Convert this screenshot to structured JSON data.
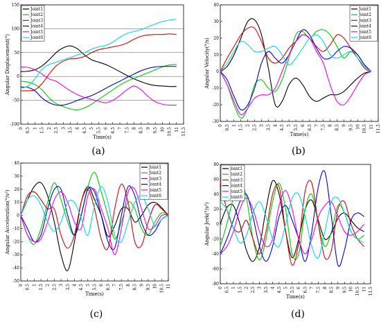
{
  "figure": {
    "panels": [
      {
        "label": "(a)",
        "ylabel": "Angular Displacement(°)",
        "xlabel": "Time(s)"
      },
      {
        "label": "(b)",
        "ylabel": "Angular Velocity(°/s)",
        "xlabel": "Time(s)"
      },
      {
        "label": "(c)",
        "ylabel": "Angular Acceleration(°/s²)",
        "xlabel": "Time(s)"
      },
      {
        "label": "(d)",
        "ylabel": "Angular Jerk(°/s³)",
        "xlabel": "Time(s)"
      }
    ]
  },
  "colors": {
    "Joint1": "#000000",
    "Joint2": "#00cc00",
    "Joint3": "#e00000",
    "Joint4": "#0000dd",
    "Joint5": "#ee00ee",
    "Joint6": "#00dddd"
  },
  "chart_data": [
    {
      "type": "line",
      "title": "",
      "xlabel": "Time(s)",
      "ylabel": "Angular Displacement(°)",
      "xlim": [
        0,
        11.5
      ],
      "ylim": [
        -100,
        150
      ],
      "xticks": [
        0,
        0.5,
        1,
        1.5,
        2,
        2.5,
        3,
        3.5,
        4,
        4.5,
        5,
        5.5,
        6,
        6.5,
        7,
        7.5,
        8,
        8.5,
        9,
        9.5,
        10,
        10.5,
        11,
        11.5
      ],
      "xtick_labels": [
        "0",
        "0.5",
        "1",
        "1.5",
        "2",
        "2.5",
        "3",
        "3.5",
        "4",
        "4.5",
        "5",
        "5.5",
        "6",
        "6.5",
        "7",
        "7.5",
        "8",
        "8.5",
        "9",
        "9.5",
        "10",
        "10.5",
        "11",
        "11.5"
      ],
      "yticks": [
        -100,
        -50,
        0,
        50,
        100,
        150
      ],
      "ytick_labels": [
        "-100",
        "-50",
        "0",
        "50",
        "100",
        "150"
      ],
      "grid": true,
      "legend": "top-left",
      "x": [
        0,
        0.5,
        1,
        1.5,
        2,
        2.5,
        3,
        3.5,
        4,
        4.5,
        5,
        5.5,
        6,
        6.5,
        7,
        7.5,
        8,
        8.5,
        9,
        9.5,
        10,
        10.5,
        11
      ],
      "series": [
        {
          "name": "Joint1",
          "values": [
            10,
            11,
            14,
            22,
            35,
            50,
            60,
            64,
            58,
            45,
            35,
            30,
            25,
            18,
            10,
            2,
            -5,
            -11,
            -16,
            -19,
            -20,
            -21,
            -21
          ]
        },
        {
          "name": "Joint2",
          "values": [
            -10,
            -12,
            -17,
            -28,
            -45,
            -57,
            -63,
            -68,
            -70,
            -66,
            -58,
            -48,
            -38,
            -28,
            -18,
            -10,
            -4,
            2,
            8,
            14,
            20,
            24,
            25
          ]
        },
        {
          "name": "Joint3",
          "values": [
            -30,
            -30,
            -28,
            -15,
            5,
            22,
            32,
            37,
            38,
            42,
            50,
            56,
            59,
            62,
            65,
            70,
            78,
            84,
            87,
            88,
            88,
            89,
            88
          ]
        },
        {
          "name": "Joint4",
          "values": [
            -22,
            -23,
            -30,
            -45,
            -55,
            -60,
            -60,
            -56,
            -50,
            -45,
            -40,
            -33,
            -25,
            -17,
            -10,
            -2,
            5,
            12,
            17,
            20,
            21,
            21,
            21
          ]
        },
        {
          "name": "Joint5",
          "values": [
            20,
            19,
            14,
            5,
            -5,
            -10,
            -20,
            -30,
            -38,
            -44,
            -48,
            -52,
            -55,
            -50,
            -40,
            -28,
            -20,
            -28,
            -42,
            -53,
            -58,
            -60,
            -60
          ]
        },
        {
          "name": "Joint6",
          "values": [
            -25,
            -20,
            -5,
            15,
            25,
            30,
            35,
            40,
            45,
            50,
            57,
            62,
            65,
            72,
            82,
            90,
            94,
            98,
            104,
            110,
            115,
            118,
            120
          ]
        }
      ]
    },
    {
      "type": "line",
      "title": "",
      "xlabel": "Time(s)",
      "ylabel": "Angular Velocity(°/s)",
      "xlim": [
        0,
        11.5
      ],
      "ylim": [
        -30,
        40
      ],
      "xticks": [
        0,
        0.5,
        1,
        1.5,
        2,
        2.5,
        3,
        3.5,
        4,
        4.5,
        5,
        5.5,
        6,
        6.5,
        7,
        7.5,
        8,
        8.5,
        9,
        9.5,
        10,
        10.5,
        11,
        11.5
      ],
      "xtick_labels": [
        "0",
        "0.5",
        "1",
        "1.5",
        "2",
        "2.5",
        "3",
        "3.5",
        "4",
        "4.5",
        "5",
        "5.5",
        "6",
        "6.5",
        "7",
        "7.5",
        "8",
        "8.5",
        "9",
        "9.5",
        "10",
        "10.5",
        "11",
        "11.5"
      ],
      "yticks": [
        -30,
        -20,
        -10,
        0,
        10,
        20,
        30,
        40
      ],
      "ytick_labels": [
        "-30",
        "-20",
        "-10",
        "0",
        "10",
        "20",
        "30",
        "40"
      ],
      "grid": false,
      "legend": "top-right",
      "x": [
        0,
        0.5,
        1,
        1.5,
        2,
        2.5,
        3,
        3.5,
        4,
        4.5,
        5,
        5.5,
        6,
        6.5,
        7,
        7.5,
        8,
        8.5,
        9,
        9.5,
        10,
        10.5,
        11
      ],
      "series": [
        {
          "name": "Joint1",
          "values": [
            0,
            3,
            10,
            20,
            30,
            31,
            22,
            2,
            -20,
            -18,
            -8,
            -4,
            -8,
            -15,
            -18,
            -16,
            -14,
            -14,
            -12,
            -8,
            -4,
            -1,
            0
          ]
        },
        {
          "name": "Joint2",
          "values": [
            0,
            -8,
            -20,
            -28,
            -22,
            -8,
            -5,
            -10,
            -12,
            -5,
            8,
            22,
            24,
            20,
            24,
            25,
            22,
            15,
            8,
            12,
            10,
            4,
            0
          ]
        },
        {
          "name": "Joint3",
          "values": [
            0,
            8,
            15,
            22,
            26,
            26,
            18,
            8,
            5,
            8,
            14,
            18,
            22,
            20,
            15,
            12,
            16,
            22,
            20,
            14,
            8,
            2,
            0
          ]
        },
        {
          "name": "Joint4",
          "values": [
            0,
            -5,
            -15,
            -23,
            -20,
            -10,
            5,
            12,
            8,
            5,
            10,
            18,
            25,
            22,
            14,
            8,
            8,
            12,
            15,
            14,
            10,
            4,
            0
          ]
        },
        {
          "name": "Joint5",
          "values": [
            0,
            -8,
            -18,
            -26,
            -22,
            -16,
            -14,
            -14,
            -10,
            0,
            10,
            18,
            22,
            20,
            12,
            5,
            -8,
            -18,
            -20,
            -15,
            -8,
            -2,
            0
          ]
        },
        {
          "name": "Joint6",
          "values": [
            0,
            5,
            12,
            18,
            16,
            12,
            12,
            14,
            15,
            10,
            4,
            8,
            14,
            20,
            22,
            18,
            10,
            8,
            10,
            12,
            8,
            3,
            0
          ]
        }
      ]
    },
    {
      "type": "line",
      "title": "",
      "xlabel": "Time(s)",
      "ylabel": "Angular Acceleration(°/s²)",
      "xlim": [
        0,
        11
      ],
      "ylim": [
        -50,
        40
      ],
      "xticks": [
        0,
        0.5,
        1,
        1.5,
        2,
        2.5,
        3,
        3.5,
        4,
        4.5,
        5,
        5.5,
        6,
        6.5,
        7,
        7.5,
        8,
        8.5,
        9,
        9.5,
        10,
        10.5,
        11
      ],
      "xtick_labels": [
        "0",
        "0.5",
        "1",
        "1.5",
        "2",
        "2.5",
        "3",
        "3.5",
        "4",
        "4.5",
        "5",
        "5.5",
        "6",
        "6.5",
        "7",
        "7.5",
        "8",
        "8.5",
        "9",
        "9.5",
        "10",
        "10.5",
        "11"
      ],
      "yticks": [
        -50,
        -40,
        -30,
        -20,
        -10,
        0,
        10,
        20,
        30,
        40
      ],
      "ytick_labels": [
        "-50",
        "-40",
        "-30",
        "-20",
        "-10",
        "0",
        "10",
        "20",
        "30",
        "40"
      ],
      "grid": false,
      "legend": "top-right",
      "x": [
        0,
        0.5,
        1,
        1.5,
        2,
        2.5,
        3,
        3.5,
        4,
        4.5,
        5,
        5.5,
        6,
        6.5,
        7,
        7.5,
        8,
        8.5,
        9,
        9.5,
        10,
        10.5,
        11
      ],
      "series": [
        {
          "name": "Joint1",
          "values": [
            0,
            12,
            22,
            25,
            15,
            -5,
            -30,
            -42,
            -20,
            10,
            22,
            12,
            0,
            -16,
            -8,
            5,
            5,
            -5,
            0,
            8,
            10,
            6,
            0
          ]
        },
        {
          "name": "Joint2",
          "values": [
            0,
            -15,
            -22,
            -10,
            10,
            25,
            12,
            -5,
            -15,
            0,
            22,
            33,
            18,
            0,
            -18,
            -5,
            10,
            5,
            -10,
            -15,
            -5,
            2,
            0
          ]
        },
        {
          "name": "Joint3",
          "values": [
            0,
            15,
            18,
            12,
            5,
            5,
            -15,
            -25,
            -15,
            10,
            20,
            5,
            -18,
            -25,
            5,
            24,
            10,
            -20,
            -23,
            -5,
            8,
            5,
            0
          ]
        },
        {
          "name": "Joint4",
          "values": [
            0,
            -10,
            -20,
            -15,
            5,
            20,
            20,
            0,
            -15,
            0,
            20,
            18,
            0,
            -20,
            -25,
            0,
            22,
            15,
            -5,
            -15,
            -12,
            -3,
            0
          ]
        },
        {
          "name": "Joint5",
          "values": [
            0,
            -15,
            -20,
            -18,
            -5,
            12,
            18,
            10,
            -5,
            -10,
            15,
            20,
            5,
            -10,
            -30,
            -10,
            18,
            20,
            5,
            -10,
            -8,
            0,
            0
          ]
        },
        {
          "name": "Joint6",
          "values": [
            0,
            12,
            15,
            8,
            -5,
            -12,
            -5,
            10,
            10,
            -2,
            -15,
            8,
            22,
            10,
            -15,
            -20,
            -5,
            10,
            15,
            5,
            -8,
            -3,
            0
          ]
        }
      ]
    },
    {
      "type": "line",
      "title": "",
      "xlabel": "Time(s)",
      "ylabel": "Angular Jerk(°/s³)",
      "xlim": [
        0,
        11.5
      ],
      "ylim": [
        -80,
        80
      ],
      "xticks": [
        0,
        0.5,
        1,
        1.5,
        2,
        2.5,
        3,
        3.5,
        4,
        4.5,
        5,
        5.5,
        6,
        6.5,
        7,
        7.5,
        8,
        8.5,
        9,
        9.5,
        10,
        10.5,
        11,
        11.5
      ],
      "xtick_labels": [
        "0",
        "0.5",
        "1",
        "1.5",
        "2",
        "2.5",
        "3",
        "3.5",
        "4",
        "4.5",
        "5",
        "5.5",
        "6",
        "6.5",
        "7",
        "7.5",
        "8",
        "8.5",
        "9",
        "9.5",
        "10",
        "10.5",
        "11",
        "11.5"
      ],
      "yticks": [
        -80,
        -60,
        -40,
        -20,
        0,
        20,
        40,
        60,
        80
      ],
      "ytick_labels": [
        "-80",
        "-60",
        "-40",
        "-20",
        "0",
        "20",
        "40",
        "60",
        "80"
      ],
      "grid": false,
      "legend": "top-left",
      "x": [
        0,
        0.5,
        1,
        1.5,
        2,
        2.5,
        3,
        3.5,
        4,
        4.5,
        5,
        5.5,
        6,
        6.5,
        7,
        7.5,
        8,
        8.5,
        9,
        9.5,
        10,
        10.5,
        11
      ],
      "series": [
        {
          "name": "Joint1",
          "values": [
            0,
            22,
            25,
            0,
            -35,
            -50,
            -30,
            20,
            58,
            40,
            -10,
            -45,
            -20,
            20,
            32,
            5,
            -20,
            -12,
            8,
            15,
            5,
            -5,
            -10
          ]
        },
        {
          "name": "Joint2",
          "values": [
            -30,
            0,
            35,
            60,
            35,
            -20,
            -48,
            -20,
            30,
            55,
            20,
            -40,
            -40,
            20,
            40,
            0,
            -30,
            -10,
            25,
            15,
            -10,
            -20,
            -15
          ]
        },
        {
          "name": "Joint3",
          "values": [
            55,
            20,
            -5,
            -10,
            5,
            -20,
            -40,
            -10,
            40,
            50,
            -10,
            -55,
            -25,
            45,
            55,
            0,
            -45,
            -35,
            20,
            30,
            0,
            -20,
            -30
          ]
        },
        {
          "name": "Joint4",
          "values": [
            -40,
            -20,
            5,
            30,
            40,
            10,
            -30,
            -50,
            -30,
            10,
            25,
            5,
            -20,
            -50,
            -10,
            50,
            70,
            10,
            -55,
            -35,
            5,
            15,
            10
          ]
        },
        {
          "name": "Joint5",
          "values": [
            -40,
            -30,
            -10,
            20,
            35,
            20,
            -10,
            -30,
            -20,
            25,
            45,
            20,
            -20,
            -40,
            -20,
            10,
            25,
            30,
            10,
            -10,
            -15,
            -10,
            0
          ]
        },
        {
          "name": "Joint6",
          "values": [
            30,
            20,
            -5,
            -25,
            -15,
            15,
            30,
            10,
            -20,
            -30,
            0,
            35,
            40,
            10,
            -30,
            -45,
            -10,
            30,
            35,
            15,
            -10,
            -20,
            -25
          ]
        }
      ]
    }
  ]
}
